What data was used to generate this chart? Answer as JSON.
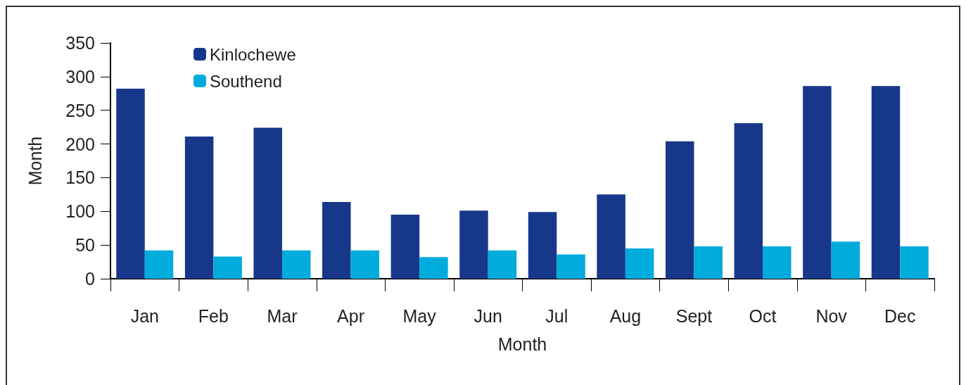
{
  "chart_data": {
    "type": "bar",
    "xlabel": "Month",
    "ylabel": "Month",
    "categories": [
      "Jan",
      "Feb",
      "Mar",
      "Apr",
      "May",
      "Jun",
      "Jul",
      "Aug",
      "Sept",
      "Oct",
      "Nov",
      "Dec"
    ],
    "series": [
      {
        "name": "Kinlochewe",
        "color": "#16378a",
        "values": [
          282,
          211,
          224,
          114,
          95,
          101,
          99,
          125,
          204,
          231,
          286,
          286
        ]
      },
      {
        "name": "Southend",
        "color": "#00acdc",
        "values": [
          42,
          33,
          42,
          42,
          32,
          42,
          36,
          45,
          48,
          48,
          55,
          48
        ]
      }
    ],
    "ylim": [
      0,
      350
    ],
    "yticks": [
      0,
      50,
      100,
      150,
      200,
      250,
      300,
      350
    ],
    "grid": false,
    "legend": "top left"
  }
}
